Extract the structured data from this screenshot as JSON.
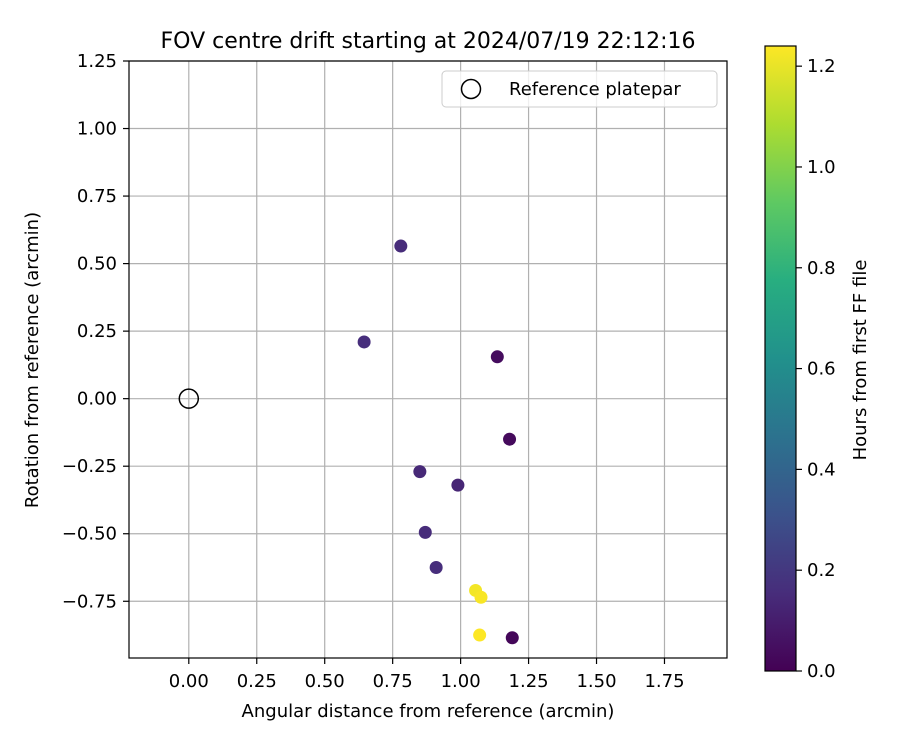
{
  "chart_data": {
    "type": "scatter",
    "title": "FOV centre drift starting at 2024/07/19 22:12:16",
    "xlabel": "Angular distance from reference (arcmin)",
    "ylabel": "Rotation from reference (arcmin)",
    "xlim": [
      -0.22,
      1.98
    ],
    "ylim": [
      -0.96,
      1.25
    ],
    "x_ticks": [
      "0.00",
      "0.25",
      "0.50",
      "0.75",
      "1.00",
      "1.25",
      "1.50",
      "1.75"
    ],
    "x_tick_values": [
      0,
      0.25,
      0.5,
      0.75,
      1.0,
      1.25,
      1.5,
      1.75
    ],
    "y_ticks": [
      "1.25",
      "1.00",
      "0.75",
      "0.50",
      "0.25",
      "0.00",
      "−0.25",
      "−0.50",
      "−0.75"
    ],
    "y_tick_values": [
      1.25,
      1.0,
      0.75,
      0.5,
      0.25,
      0.0,
      -0.25,
      -0.5,
      -0.75
    ],
    "grid": true,
    "legend": {
      "placement": "top-right",
      "entries": [
        "Reference platepar"
      ]
    },
    "reference_point": {
      "x": 0.0,
      "y": 0.0
    },
    "colormap": "viridis",
    "colorbar": {
      "label": "Hours from first FF file",
      "range": [
        0.0,
        1.24
      ],
      "tick_labels": [
        "0.0",
        "0.2",
        "0.4",
        "0.6",
        "0.8",
        "1.0",
        "1.2"
      ],
      "tick_values": [
        0.0,
        0.2,
        0.4,
        0.6,
        0.8,
        1.0,
        1.2
      ]
    },
    "points": [
      {
        "x": 0.78,
        "y": 0.565,
        "hours": 0.15
      },
      {
        "x": 0.645,
        "y": 0.21,
        "hours": 0.16
      },
      {
        "x": 1.135,
        "y": 0.155,
        "hours": 0.04
      },
      {
        "x": 1.18,
        "y": -0.15,
        "hours": 0.03
      },
      {
        "x": 0.85,
        "y": -0.27,
        "hours": 0.14
      },
      {
        "x": 0.99,
        "y": -0.32,
        "hours": 0.13
      },
      {
        "x": 0.87,
        "y": -0.495,
        "hours": 0.15
      },
      {
        "x": 0.91,
        "y": -0.625,
        "hours": 0.16
      },
      {
        "x": 1.055,
        "y": -0.71,
        "hours": 1.22
      },
      {
        "x": 1.075,
        "y": -0.735,
        "hours": 1.23
      },
      {
        "x": 1.07,
        "y": -0.875,
        "hours": 1.24
      },
      {
        "x": 1.19,
        "y": -0.885,
        "hours": 0.02
      }
    ]
  }
}
